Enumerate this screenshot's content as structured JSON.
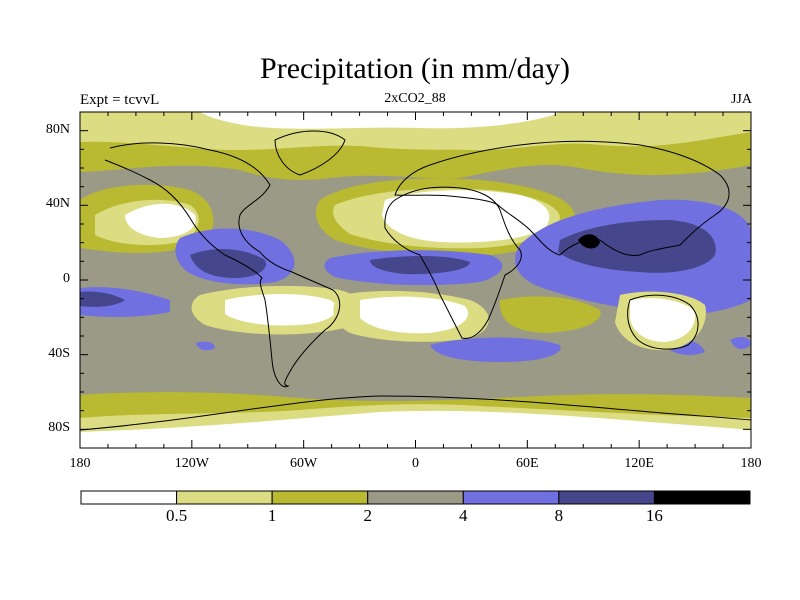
{
  "title": "Precipitation (in mm/day)",
  "left_label": "Expt = tcvvL",
  "center_label": "2xCO2_88",
  "right_label": "JJA",
  "map": {
    "lat_ticks": [
      {
        "value": 80,
        "label": "80N"
      },
      {
        "value": 40,
        "label": "40N"
      },
      {
        "value": 0,
        "label": "0"
      },
      {
        "value": -40,
        "label": "40S"
      },
      {
        "value": -80,
        "label": "80S"
      }
    ],
    "lon_ticks": [
      {
        "value": -180,
        "label": "180"
      },
      {
        "value": -120,
        "label": "120W"
      },
      {
        "value": -60,
        "label": "60W"
      },
      {
        "value": 0,
        "label": "0"
      },
      {
        "value": 60,
        "label": "60E"
      },
      {
        "value": 120,
        "label": "120E"
      },
      {
        "value": 180,
        "label": "180"
      }
    ],
    "lon_range": [
      -180,
      180
    ],
    "lat_range": [
      -90,
      90
    ]
  },
  "colorbar": {
    "colors": [
      "#ffffff",
      "#dcdc82",
      "#b9b932",
      "#9a9a87",
      "#7070e0",
      "#46468c",
      "#000000"
    ],
    "labels": [
      "0.5",
      "1",
      "2",
      "4",
      "8",
      "16"
    ]
  }
}
